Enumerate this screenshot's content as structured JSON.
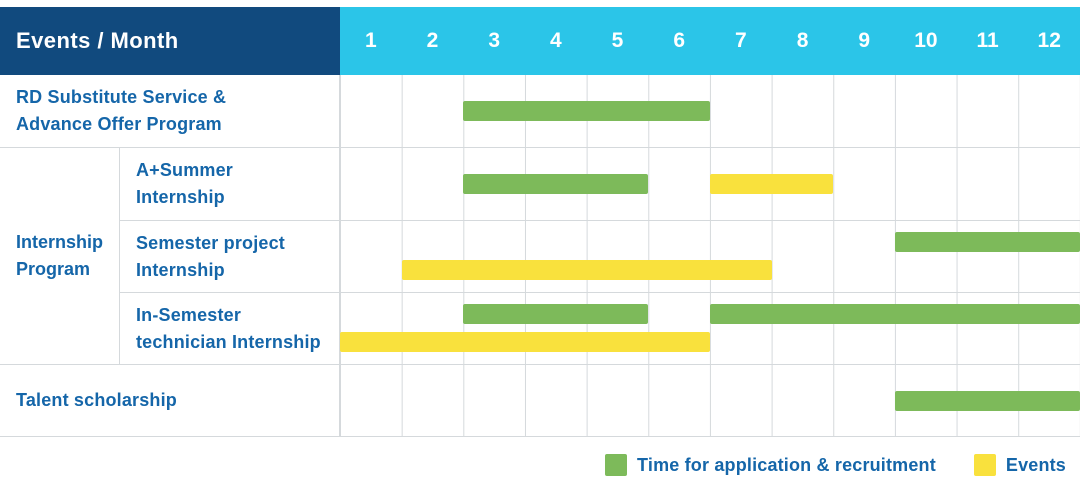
{
  "header": {
    "title": "Events / Month",
    "months": [
      "1",
      "2",
      "3",
      "4",
      "5",
      "6",
      "7",
      "8",
      "9",
      "10",
      "11",
      "12"
    ]
  },
  "colors": {
    "navy": "#114A7E",
    "cyan": "#2BC5E8",
    "green": "#7DBA5A",
    "yellow": "#F9E13D",
    "label_blue": "#1566A9",
    "grid": "#D5D9DC"
  },
  "legend": {
    "items": [
      {
        "label": "Time for application & recruitment",
        "color": "#7DBA5A"
      },
      {
        "label": "Events",
        "color": "#F9E13D"
      }
    ]
  },
  "chart_data": {
    "type": "bar",
    "subtype": "gantt-timeline",
    "x_axis": {
      "label": "Month",
      "ticks": [
        1,
        2,
        3,
        4,
        5,
        6,
        7,
        8,
        9,
        10,
        11,
        12
      ],
      "range": [
        1,
        12
      ]
    },
    "grid": true,
    "legend_position": "bottom-right",
    "series_legend": [
      {
        "name": "Time for application & recruitment",
        "color": "#7DBA5A"
      },
      {
        "name": "Events",
        "color": "#F9E13D"
      }
    ],
    "group_label": "Internship\nProgram",
    "rows": [
      {
        "label": "RD Substitute Service &\nAdvance Offer Program",
        "group": null,
        "bars": [
          {
            "series": "Time for application & recruitment",
            "start_month": 3,
            "end_month": 6
          }
        ]
      },
      {
        "label": "A+Summer\nInternship",
        "group": "Internship Program",
        "bars": [
          {
            "series": "Time for application & recruitment",
            "start_month": 3,
            "end_month": 5
          },
          {
            "series": "Events",
            "start_month": 7,
            "end_month": 8
          }
        ]
      },
      {
        "label": "Semester project\nInternship",
        "group": "Internship Program",
        "bars": [
          {
            "series": "Time for application & recruitment",
            "start_month": 10,
            "end_month": 12
          },
          {
            "series": "Events",
            "start_month": 2,
            "end_month": 7
          }
        ]
      },
      {
        "label": "In-Semester\ntechnician Internship",
        "group": "Internship Program",
        "bars": [
          {
            "series": "Time for application & recruitment",
            "start_month": 3,
            "end_month": 5
          },
          {
            "series": "Time for application & recruitment",
            "start_month": 7,
            "end_month": 12
          },
          {
            "series": "Events",
            "start_month": 1,
            "end_month": 6
          }
        ]
      },
      {
        "label": "Talent scholarship",
        "group": null,
        "bars": [
          {
            "series": "Time for application & recruitment",
            "start_month": 10,
            "end_month": 12
          }
        ]
      }
    ]
  }
}
